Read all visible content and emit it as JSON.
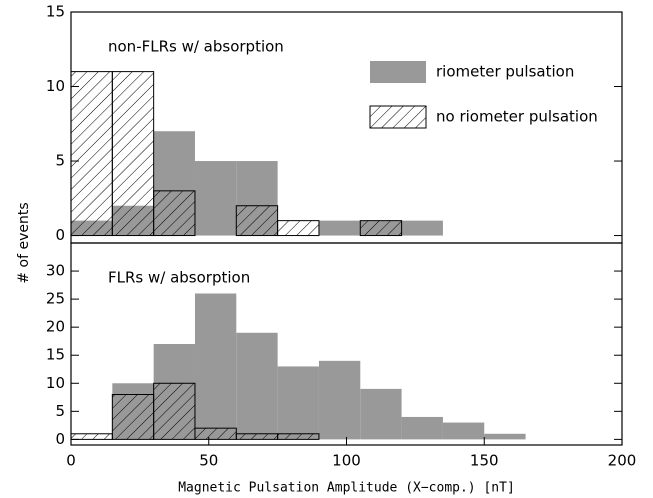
{
  "chart_data": [
    {
      "type": "histogram",
      "annotation": "non-FLRs w/ absorption",
      "ylabel": "# of events",
      "bins": [
        0,
        15,
        30,
        45,
        60,
        75,
        90,
        105,
        120,
        135
      ],
      "series": [
        {
          "name": "riometer pulsation",
          "color": "#999999",
          "values": [
            1,
            2,
            7,
            5,
            5,
            0,
            1,
            1,
            1
          ]
        },
        {
          "name": "no riometer pulsation",
          "color": "#000000",
          "values": [
            11,
            11,
            3,
            0,
            2,
            1,
            0,
            1,
            0
          ]
        }
      ],
      "xlim": [
        0,
        200
      ],
      "ylim": [
        -0.5,
        15
      ],
      "yticks": [
        0,
        5,
        10,
        15
      ],
      "legend": true
    },
    {
      "type": "histogram",
      "annotation": "FLRs w/ absorption",
      "xlabel": "Magnetic Pulsation Amplitude (X−comp.) [nT]",
      "bins": [
        0,
        15,
        30,
        45,
        60,
        75,
        90,
        105,
        120,
        135,
        150,
        165
      ],
      "series": [
        {
          "name": "riometer pulsation",
          "color": "#999999",
          "values": [
            0,
            10,
            17,
            26,
            19,
            13,
            14,
            9,
            4,
            3,
            1
          ]
        },
        {
          "name": "no riometer pulsation",
          "color": "#000000",
          "values": [
            1,
            8,
            10,
            2,
            1,
            1,
            0,
            0,
            0,
            0,
            0
          ]
        }
      ],
      "xlim": [
        0,
        200
      ],
      "ylim": [
        -1,
        35
      ],
      "xticks": [
        0,
        50,
        100,
        150,
        200
      ],
      "yticks": [
        0,
        5,
        10,
        15,
        20,
        25,
        30
      ],
      "legend": false
    }
  ]
}
